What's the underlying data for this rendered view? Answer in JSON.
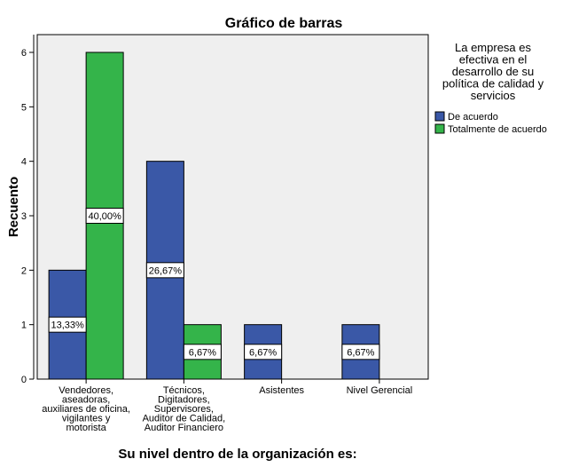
{
  "chart_data": {
    "type": "bar",
    "title": "Gráfico de barras",
    "xlabel": "Su nivel dentro de la organización es:",
    "ylabel": "Recuento",
    "ylim": [
      0,
      6
    ],
    "yticks": [
      "0",
      "1",
      "2",
      "3",
      "4",
      "5",
      "6"
    ],
    "grid": false,
    "legend_position": "right",
    "legend_title": [
      "La empresa es",
      "efectiva en el",
      "desarrollo de su",
      "política de calidad y",
      "servicios"
    ],
    "categories": [
      [
        "Vendedores,",
        "aseadoras,",
        "auxiliares de oficina,",
        "vigilantes y",
        "motorista"
      ],
      [
        "Técnicos,",
        "Digitadores,",
        "Supervisores,",
        "Auditor de Calidad,",
        "Auditor Financiero"
      ],
      [
        "Asistentes"
      ],
      [
        "Nivel Gerencial"
      ]
    ],
    "series": [
      {
        "name": "De acuerdo",
        "color": "#3a58a7",
        "values": [
          2,
          4,
          1,
          1
        ],
        "labels": [
          "13,33%",
          "26,67%",
          "6,67%",
          "6,67%"
        ]
      },
      {
        "name": "Totalmente  de acuerdo",
        "color": "#34b44a",
        "values": [
          6,
          1,
          null,
          null
        ],
        "labels": [
          "40,00%",
          "6,67%",
          "",
          ""
        ]
      }
    ],
    "plot_background": "#efefef"
  }
}
